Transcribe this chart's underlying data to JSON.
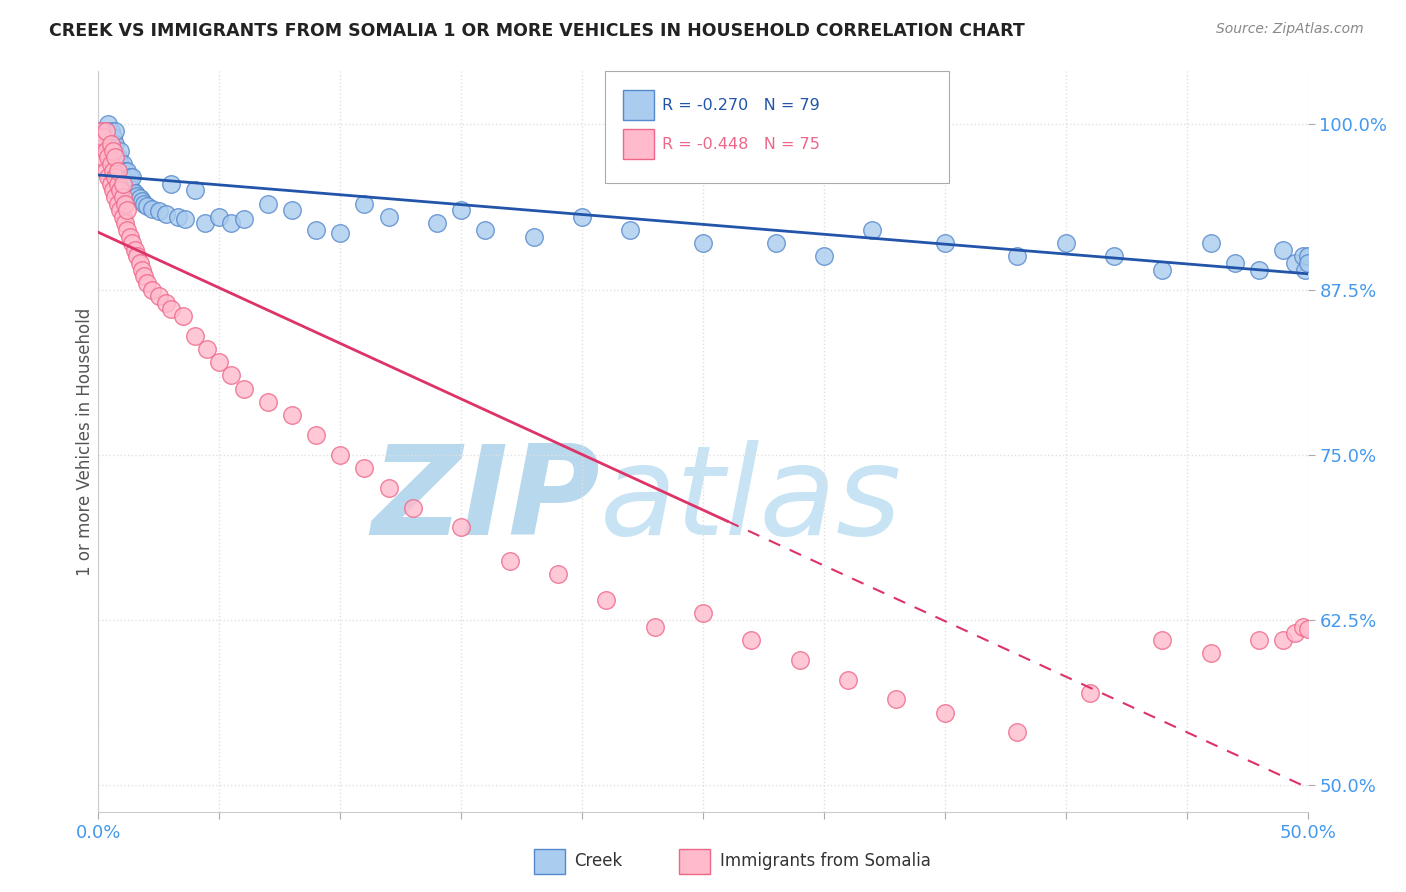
{
  "title": "CREEK VS IMMIGRANTS FROM SOMALIA 1 OR MORE VEHICLES IN HOUSEHOLD CORRELATION CHART",
  "source": "Source: ZipAtlas.com",
  "ylabel": "1 or more Vehicles in Household",
  "yticks_labels": [
    "50.0%",
    "62.5%",
    "75.0%",
    "87.5%",
    "100.0%"
  ],
  "ytick_vals": [
    0.5,
    0.625,
    0.75,
    0.875,
    1.0
  ],
  "xticks_labels": [
    "0.0%",
    "",
    "",
    "",
    "",
    "",
    "",
    "",
    "",
    "",
    "50.0%"
  ],
  "xtick_vals": [
    0.0,
    0.05,
    0.1,
    0.15,
    0.2,
    0.25,
    0.3,
    0.35,
    0.4,
    0.45,
    0.5
  ],
  "xlim": [
    0.0,
    0.5
  ],
  "ylim": [
    0.48,
    1.04
  ],
  "creek_R": -0.27,
  "creek_N": 79,
  "somalia_R": -0.448,
  "somalia_N": 75,
  "creek_color": "#aaccee",
  "creek_edge_color": "#5588cc",
  "somalia_color": "#ffbbcc",
  "somalia_edge_color": "#ee6688",
  "creek_line_color": "#2255aa",
  "somalia_line_color": "#dd3366",
  "background_color": "#ffffff",
  "watermark": "ZIPatlas",
  "watermark_color": "#cce4f0",
  "grid_color": "#e0e0e0",
  "tick_color": "#4499ee",
  "title_color": "#222222",
  "source_color": "#888888",
  "creek_x": [
    0.001,
    0.002,
    0.003,
    0.003,
    0.004,
    0.004,
    0.004,
    0.005,
    0.005,
    0.005,
    0.006,
    0.006,
    0.006,
    0.007,
    0.007,
    0.007,
    0.007,
    0.008,
    0.008,
    0.009,
    0.009,
    0.009,
    0.01,
    0.01,
    0.011,
    0.011,
    0.012,
    0.012,
    0.013,
    0.013,
    0.014,
    0.014,
    0.015,
    0.016,
    0.017,
    0.018,
    0.019,
    0.02,
    0.022,
    0.025,
    0.028,
    0.03,
    0.033,
    0.036,
    0.04,
    0.044,
    0.05,
    0.055,
    0.06,
    0.07,
    0.08,
    0.09,
    0.1,
    0.11,
    0.12,
    0.14,
    0.15,
    0.16,
    0.18,
    0.2,
    0.22,
    0.25,
    0.28,
    0.3,
    0.32,
    0.35,
    0.38,
    0.4,
    0.42,
    0.44,
    0.46,
    0.47,
    0.48,
    0.49,
    0.495,
    0.498,
    0.499,
    0.5,
    0.5
  ],
  "creek_y": [
    0.995,
    0.99,
    0.985,
    0.995,
    0.98,
    0.99,
    1.0,
    0.975,
    0.985,
    0.995,
    0.97,
    0.98,
    0.99,
    0.97,
    0.975,
    0.985,
    0.995,
    0.965,
    0.975,
    0.96,
    0.97,
    0.98,
    0.96,
    0.97,
    0.955,
    0.965,
    0.955,
    0.965,
    0.95,
    0.96,
    0.95,
    0.96,
    0.948,
    0.946,
    0.944,
    0.942,
    0.94,
    0.938,
    0.936,
    0.934,
    0.932,
    0.955,
    0.93,
    0.928,
    0.95,
    0.925,
    0.93,
    0.925,
    0.928,
    0.94,
    0.935,
    0.92,
    0.918,
    0.94,
    0.93,
    0.925,
    0.935,
    0.92,
    0.915,
    0.93,
    0.92,
    0.91,
    0.91,
    0.9,
    0.92,
    0.91,
    0.9,
    0.91,
    0.9,
    0.89,
    0.91,
    0.895,
    0.89,
    0.905,
    0.895,
    0.9,
    0.89,
    0.9,
    0.895
  ],
  "somalia_x": [
    0.001,
    0.001,
    0.002,
    0.002,
    0.003,
    0.003,
    0.003,
    0.004,
    0.004,
    0.005,
    0.005,
    0.005,
    0.006,
    0.006,
    0.006,
    0.007,
    0.007,
    0.007,
    0.008,
    0.008,
    0.008,
    0.009,
    0.009,
    0.01,
    0.01,
    0.01,
    0.011,
    0.011,
    0.012,
    0.012,
    0.013,
    0.014,
    0.015,
    0.016,
    0.017,
    0.018,
    0.019,
    0.02,
    0.022,
    0.025,
    0.028,
    0.03,
    0.035,
    0.04,
    0.045,
    0.05,
    0.055,
    0.06,
    0.07,
    0.08,
    0.09,
    0.1,
    0.11,
    0.12,
    0.13,
    0.15,
    0.17,
    0.19,
    0.21,
    0.23,
    0.25,
    0.27,
    0.29,
    0.31,
    0.33,
    0.35,
    0.38,
    0.41,
    0.44,
    0.46,
    0.48,
    0.49,
    0.495,
    0.498,
    0.5
  ],
  "somalia_y": [
    0.985,
    0.995,
    0.975,
    0.99,
    0.965,
    0.98,
    0.995,
    0.96,
    0.975,
    0.955,
    0.97,
    0.985,
    0.95,
    0.965,
    0.98,
    0.945,
    0.96,
    0.975,
    0.94,
    0.955,
    0.965,
    0.935,
    0.95,
    0.93,
    0.945,
    0.955,
    0.925,
    0.94,
    0.92,
    0.935,
    0.915,
    0.91,
    0.905,
    0.9,
    0.895,
    0.89,
    0.885,
    0.88,
    0.875,
    0.87,
    0.865,
    0.86,
    0.855,
    0.84,
    0.83,
    0.82,
    0.81,
    0.8,
    0.79,
    0.78,
    0.765,
    0.75,
    0.74,
    0.725,
    0.71,
    0.695,
    0.67,
    0.66,
    0.64,
    0.62,
    0.63,
    0.61,
    0.595,
    0.58,
    0.565,
    0.555,
    0.54,
    0.57,
    0.61,
    0.6,
    0.61,
    0.61,
    0.615,
    0.62,
    0.618
  ]
}
